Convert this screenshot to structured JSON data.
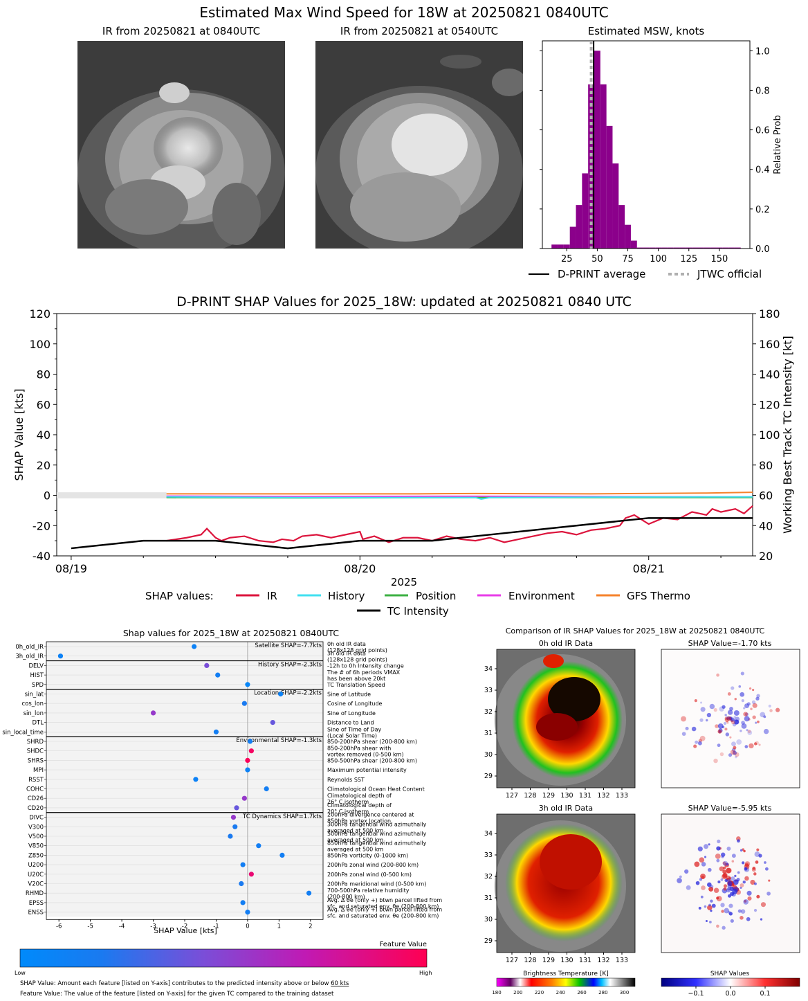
{
  "top": {
    "title": "Estimated Max Wind Speed for 18W at 20250821 0840UTC",
    "ir_now_title": "IR from 20250821 at 0840UTC",
    "ir_prev_title": "IR from 20250821 at 0540UTC",
    "hist_title": "Estimated MSW, knots",
    "legend_dprint": "D-PRINT average",
    "legend_jtwc": "JTWC official"
  },
  "colors": {
    "ir": "#dc143c",
    "history": "#40e0f0",
    "position": "#3cb043",
    "environment": "#e83ce8",
    "gfs": "#f5822b",
    "tc": "#000000",
    "hist_bar": "#8b008b"
  },
  "chart_data": [
    {
      "id": "msw_histogram",
      "type": "bar",
      "title": "Estimated MSW, knots",
      "ylabel": "Relative Prob",
      "xlim": [
        5,
        175
      ],
      "ylim": [
        0,
        1.05
      ],
      "xticks": [
        25,
        50,
        75,
        100,
        125,
        150
      ],
      "yticks": [
        0.0,
        0.2,
        0.4,
        0.6,
        0.8,
        1.0
      ],
      "bin_width": 5,
      "bins": [
        15,
        20,
        25,
        30,
        35,
        40,
        45,
        50,
        55,
        60,
        65,
        70,
        75,
        80,
        85,
        90,
        95,
        100,
        105,
        110,
        115,
        120,
        125,
        130,
        135,
        140,
        145,
        150,
        155,
        160,
        165
      ],
      "values": [
        0.02,
        0.02,
        0.02,
        0.11,
        0.22,
        0.38,
        0.83,
        1.0,
        0.83,
        0.62,
        0.43,
        0.22,
        0.12,
        0.04,
        0.005,
        0.005,
        0.005,
        0.005,
        0.005,
        0.005,
        0.005,
        0.005,
        0.005,
        0.005,
        0.005,
        0.005,
        0.005,
        0.005,
        0.005,
        0.005,
        0.005
      ],
      "dprint_average": 47,
      "jtwc_official": 45
    },
    {
      "id": "shap_timeseries",
      "type": "line",
      "title": "D-PRINT SHAP Values for 2025_18W: updated at 20250821 0840 UTC",
      "ylabel": "SHAP Value [kts]",
      "y2label": "Working Best Track TC Intensity [kt]",
      "xlabel": "2025",
      "x_tick_labels": [
        "08/19",
        "08/20",
        "08/21"
      ],
      "x_tick_days": [
        0,
        1,
        2
      ],
      "xlim_days": [
        -0.05,
        2.36
      ],
      "ylim": [
        -40,
        120
      ],
      "y2lim": [
        20,
        180
      ],
      "yticks": [
        -40,
        -20,
        0,
        20,
        40,
        60,
        80,
        100,
        120
      ],
      "y2ticks": [
        20,
        40,
        60,
        80,
        100,
        120,
        140,
        160,
        180
      ],
      "legend_title": "SHAP values:",
      "series": [
        {
          "name": "IR",
          "color_key": "ir",
          "x": [
            0.33,
            0.4,
            0.45,
            0.47,
            0.5,
            0.52,
            0.55,
            0.6,
            0.65,
            0.7,
            0.73,
            0.77,
            0.8,
            0.85,
            0.9,
            0.95,
            1.0,
            1.01,
            1.05,
            1.1,
            1.15,
            1.2,
            1.25,
            1.3,
            1.35,
            1.4,
            1.45,
            1.5,
            1.55,
            1.6,
            1.65,
            1.7,
            1.75,
            1.8,
            1.85,
            1.9,
            1.92,
            1.95,
            2.0,
            2.05,
            2.1,
            2.15,
            2.2,
            2.22,
            2.25,
            2.3,
            2.33,
            2.36
          ],
          "values": [
            -30,
            -28,
            -26,
            -22,
            -28,
            -30,
            -28,
            -27,
            -30,
            -31,
            -29,
            -30,
            -27,
            -26,
            -28,
            -26,
            -24,
            -29,
            -27,
            -31,
            -28,
            -28,
            -30,
            -27,
            -29,
            -30,
            -28,
            -31,
            -29,
            -27,
            -25,
            -24,
            -26,
            -23,
            -22,
            -20,
            -15,
            -13,
            -19,
            -15,
            -16,
            -11,
            -13,
            -9,
            -11,
            -9,
            -12,
            -7
          ]
        },
        {
          "name": "History",
          "color_key": "history",
          "x": [
            0.33,
            0.8,
            1.2,
            1.4,
            1.42,
            1.45,
            1.8,
            2.2,
            2.36
          ],
          "values": [
            -1,
            -1.5,
            -1.5,
            -1.5,
            -2.5,
            -1.5,
            -1.2,
            -1,
            -1
          ]
        },
        {
          "name": "Position",
          "color_key": "position",
          "x": [
            0.33,
            0.8,
            1.4,
            1.8,
            2.36
          ],
          "values": [
            -1.5,
            -1.7,
            -1.5,
            -1.5,
            -1.5
          ]
        },
        {
          "name": "Environment",
          "color_key": "environment",
          "x": [
            0.33,
            0.8,
            1.4,
            1.8,
            2.2,
            2.36
          ],
          "values": [
            -0.5,
            -0.8,
            -0.6,
            -0.8,
            -1,
            -1
          ]
        },
        {
          "name": "GFS Thermo",
          "color_key": "gfs",
          "x": [
            0.33,
            0.8,
            1.2,
            1.4,
            1.8,
            2.2,
            2.36
          ],
          "values": [
            1,
            1,
            1,
            1.2,
            1,
            1.5,
            2
          ]
        }
      ],
      "tc_intensity": {
        "name": "TC Intensity",
        "x": [
          0,
          0.25,
          0.5,
          0.75,
          1.0,
          1.25,
          1.5,
          1.75,
          2.0,
          2.36
        ],
        "values": [
          25,
          30,
          30,
          25,
          30,
          30,
          35,
          40,
          45,
          45
        ]
      }
    },
    {
      "id": "shap_features",
      "type": "scatter",
      "title": "Shap values for 2025_18W at 20250821 0840UTC",
      "xlabel": "SHAP Value [kts]",
      "xlim": [
        -6.4,
        2.4
      ],
      "xticks": [
        -6,
        -5,
        -4,
        -3,
        -2,
        -1,
        0,
        1,
        2
      ],
      "groups": [
        {
          "label": "Satellite SHAP=-7.7kts",
          "start": 0,
          "count": 2
        },
        {
          "label": "History SHAP=-2.3kts",
          "start": 2,
          "count": 3
        },
        {
          "label": "Location SHAP=-2.2kts",
          "start": 5,
          "count": 5
        },
        {
          "label": "Environmental SHAP=-1.3kts",
          "start": 10,
          "count": 8
        },
        {
          "label": "TC Dynamics SHAP=1.7kts",
          "start": 18,
          "count": 11
        }
      ],
      "features": [
        {
          "name": "0h_old_IR",
          "value": -1.7,
          "fv": 0.1,
          "desc": [
            "0h old IR data",
            "(128x128 grid points)"
          ]
        },
        {
          "name": "3h_old_IR",
          "value": -5.95,
          "fv": 0.1,
          "desc": [
            "3h old IR data",
            "(128x128 grid points)"
          ]
        },
        {
          "name": "DELV",
          "value": -1.3,
          "fv": 0.45,
          "desc": [
            "-12h to 0h Intensity change"
          ]
        },
        {
          "name": "HIST",
          "value": -0.95,
          "fv": 0.15,
          "desc": [
            "The # of 6h periods VMAX",
            "has been above 20kt"
          ]
        },
        {
          "name": "SPD",
          "value": 0.0,
          "fv": 0.05,
          "desc": [
            "TC Translation Speed"
          ]
        },
        {
          "name": "sin_lat",
          "value": 1.05,
          "fv": 0.1,
          "desc": [
            "Sine of Latitude"
          ]
        },
        {
          "name": "cos_lon",
          "value": -0.1,
          "fv": 0.2,
          "desc": [
            "Cosine of Longitude"
          ]
        },
        {
          "name": "sin_lon",
          "value": -3.0,
          "fv": 0.55,
          "desc": [
            "Sine of Longitude"
          ]
        },
        {
          "name": "DTL",
          "value": 0.8,
          "fv": 0.4,
          "desc": [
            "Distance to Land"
          ]
        },
        {
          "name": "sin_local_time",
          "value": -1.0,
          "fv": 0.15,
          "desc": [
            "Sine of Time of Day",
            "(Local Solar Time)"
          ]
        },
        {
          "name": "SHRD",
          "value": 0.08,
          "fv": 0.15,
          "desc": [
            "850-200hPa shear (200-800 km)"
          ]
        },
        {
          "name": "SHDC",
          "value": 0.12,
          "fv": 0.95,
          "desc": [
            "850-200hPa shear with",
            "vortex removed (0-500 km)"
          ]
        },
        {
          "name": "SHRS",
          "value": 0.0,
          "fv": 0.98,
          "desc": [
            "850-500hPa shear (200-800 km)"
          ]
        },
        {
          "name": "MPI",
          "value": 0.0,
          "fv": 0.1,
          "desc": [
            "Maximum potential intensity"
          ]
        },
        {
          "name": "RSST",
          "value": -1.65,
          "fv": 0.1,
          "desc": [
            "Reynolds SST"
          ]
        },
        {
          "name": "COHC",
          "value": 0.6,
          "fv": 0.15,
          "desc": [
            "Climatological Ocean Heat Content"
          ]
        },
        {
          "name": "CD26",
          "value": -0.1,
          "fv": 0.55,
          "desc": [
            "Climatological depth of",
            "26° C isotherm"
          ]
        },
        {
          "name": "CD20",
          "value": -0.35,
          "fv": 0.4,
          "desc": [
            "Climatological depth of",
            "20° C isotherm"
          ]
        },
        {
          "name": "DIVC",
          "value": -0.45,
          "fv": 0.55,
          "desc": [
            "200hPa divergence centered at",
            "850hPa vortex location"
          ]
        },
        {
          "name": "V300",
          "value": -0.4,
          "fv": 0.2,
          "desc": [
            "300hPa tangential wind azimuthally",
            "averaged at 500 km"
          ]
        },
        {
          "name": "V500",
          "value": -0.55,
          "fv": 0.2,
          "desc": [
            "500hPa tangential wind azimuthally",
            "averaged at 500 km"
          ]
        },
        {
          "name": "V850",
          "value": 0.35,
          "fv": 0.15,
          "desc": [
            "850hPa tangential wind azimuthally",
            "averaged at 500 km"
          ]
        },
        {
          "name": "Z850",
          "value": 1.1,
          "fv": 0.15,
          "desc": [
            "850hPa vorticity (0-1000 km)"
          ]
        },
        {
          "name": "U200",
          "value": -0.15,
          "fv": 0.15,
          "desc": [
            "200hPa zonal wind (200-800 km)"
          ]
        },
        {
          "name": "U20C",
          "value": 0.12,
          "fv": 0.9,
          "desc": [
            "200hPa zonal wind (0-500 km)"
          ]
        },
        {
          "name": "V20C",
          "value": -0.2,
          "fv": 0.2,
          "desc": [
            "200hPa meridional wind (0-500 km)"
          ]
        },
        {
          "name": "RHMD",
          "value": 1.95,
          "fv": 0.15,
          "desc": [
            "700-500hPa relative humidity",
            "(200-800 km)"
          ]
        },
        {
          "name": "EPSS",
          "value": -0.15,
          "fv": 0.15,
          "desc": [
            "Avg. Δ θe (only +) btwn parcel lifted from",
            "sfc. and saturated env. θe (200-800 km)"
          ]
        },
        {
          "name": "ENSS",
          "value": 0.0,
          "fv": 0.15,
          "desc": [
            "Avg. Δ θe (only +) btwn parcel lifted from",
            "sfc. and saturated env. θe (200-800 km)"
          ]
        }
      ]
    },
    {
      "id": "bt_colorbar",
      "type": "heatmap",
      "title": "Brightness Temperature [K]",
      "ticks": [
        180,
        200,
        220,
        240,
        260,
        280,
        300
      ],
      "range": [
        180,
        310
      ]
    },
    {
      "id": "shap_colorbar",
      "type": "heatmap",
      "title": "SHAP Values",
      "ticks": [
        -0.1,
        0.0,
        0.1
      ],
      "tick_labels": [
        "−0.1",
        "0.0",
        "0.1"
      ],
      "range": [
        -0.2,
        0.2
      ]
    }
  ],
  "feature_colorbar": {
    "title": "Feature Value",
    "low": "Low",
    "high": "High"
  },
  "notes": {
    "line1_pre": "SHAP Value: Amount each feature [listed on Y-axis] contributes to the predicted intensity above or below ",
    "line1_kts": "60 kts",
    "line2": "Feature Value: The value of the feature [listed on Y-axis] for the given TC compared to the training dataset"
  },
  "comparison": {
    "title": "Comparison of IR SHAP Values for 2025_18W at 20250821 0840UTC",
    "panel1": "0h old IR Data",
    "panel2": "SHAP Value=-1.70 kts",
    "panel3": "3h old IR Data",
    "panel4": "SHAP Value=-5.95 kts",
    "lon_ticks": [
      "127",
      "128",
      "129",
      "130",
      "131",
      "132",
      "133"
    ],
    "lat_ticks": [
      "34",
      "33",
      "32",
      "31",
      "30",
      "29"
    ]
  }
}
